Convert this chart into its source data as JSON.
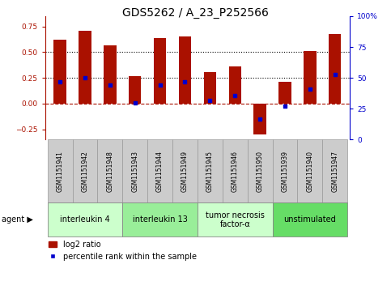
{
  "title": "GDS5262 / A_23_P252566",
  "samples": [
    "GSM1151941",
    "GSM1151942",
    "GSM1151948",
    "GSM1151943",
    "GSM1151944",
    "GSM1151949",
    "GSM1151945",
    "GSM1151946",
    "GSM1151950",
    "GSM1151939",
    "GSM1151940",
    "GSM1151947"
  ],
  "log2_ratio": [
    0.62,
    0.71,
    0.57,
    0.27,
    0.64,
    0.65,
    0.31,
    0.36,
    -0.3,
    0.21,
    0.51,
    0.68
  ],
  "percentile_rank": [
    47,
    50,
    44,
    30,
    44,
    47,
    32,
    36,
    17,
    27,
    41,
    53
  ],
  "agents": [
    {
      "label": "interleukin 4",
      "start": 0,
      "end": 3,
      "color": "#ccffcc"
    },
    {
      "label": "interleukin 13",
      "start": 3,
      "end": 6,
      "color": "#99ee99"
    },
    {
      "label": "tumor necrosis\nfactor-α",
      "start": 6,
      "end": 9,
      "color": "#ccffcc"
    },
    {
      "label": "unstimulated",
      "start": 9,
      "end": 12,
      "color": "#66dd66"
    }
  ],
  "bar_color": "#aa1100",
  "dot_color": "#0000cc",
  "ylim_left": [
    -0.35,
    0.85
  ],
  "ylim_right": [
    0,
    100
  ],
  "yticks_left": [
    -0.25,
    0,
    0.25,
    0.5,
    0.75
  ],
  "yticks_right": [
    0,
    25,
    50,
    75,
    100
  ],
  "ytick_labels_right": [
    "0",
    "25",
    "50",
    "75",
    "100%"
  ],
  "hline_y": [
    0.25,
    0.5
  ],
  "zero_line_y": 0,
  "bar_width": 0.5,
  "agent_label_fontsize": 7,
  "sample_label_fontsize": 5.5,
  "tick_label_fontsize": 6.5,
  "title_fontsize": 10,
  "legend_fontsize": 7,
  "axis_color_left": "#aa1100",
  "axis_color_right": "#0000cc",
  "sample_bg_color": "#cccccc",
  "sample_edge_color": "#999999"
}
